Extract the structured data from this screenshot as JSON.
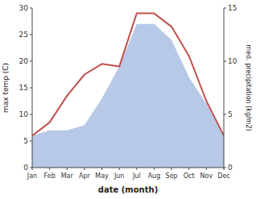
{
  "chart_data": {
    "type": "line",
    "categories": [
      "Jan",
      "Feb",
      "Mar",
      "Apr",
      "May",
      "Jun",
      "Jul",
      "Aug",
      "Sep",
      "Oct",
      "Nov",
      "Dec"
    ],
    "series": [
      {
        "type": "area",
        "axis": "y2",
        "color": "#b8c9e8",
        "values": [
          3.0,
          3.5,
          3.5,
          4.0,
          6.5,
          9.5,
          13.5,
          13.5,
          12.0,
          8.5,
          6.0,
          3.0
        ]
      },
      {
        "type": "line",
        "color": "#c0504d",
        "values": [
          6.0,
          8.5,
          13.5,
          17.5,
          19.5,
          19.0,
          29.0,
          29.0,
          26.5,
          21.0,
          12.5,
          6.0
        ]
      }
    ],
    "xlabel": "date (month)",
    "ylabel": "max temp (C)",
    "y2label": "med. precipitation (kg/m2)",
    "ylim": [
      0,
      30
    ],
    "yticks": [
      0,
      5,
      10,
      15,
      20,
      25,
      30
    ],
    "y2lim": [
      0,
      15
    ],
    "y2ticks": [
      0,
      5,
      10,
      15
    ],
    "grid": false
  }
}
